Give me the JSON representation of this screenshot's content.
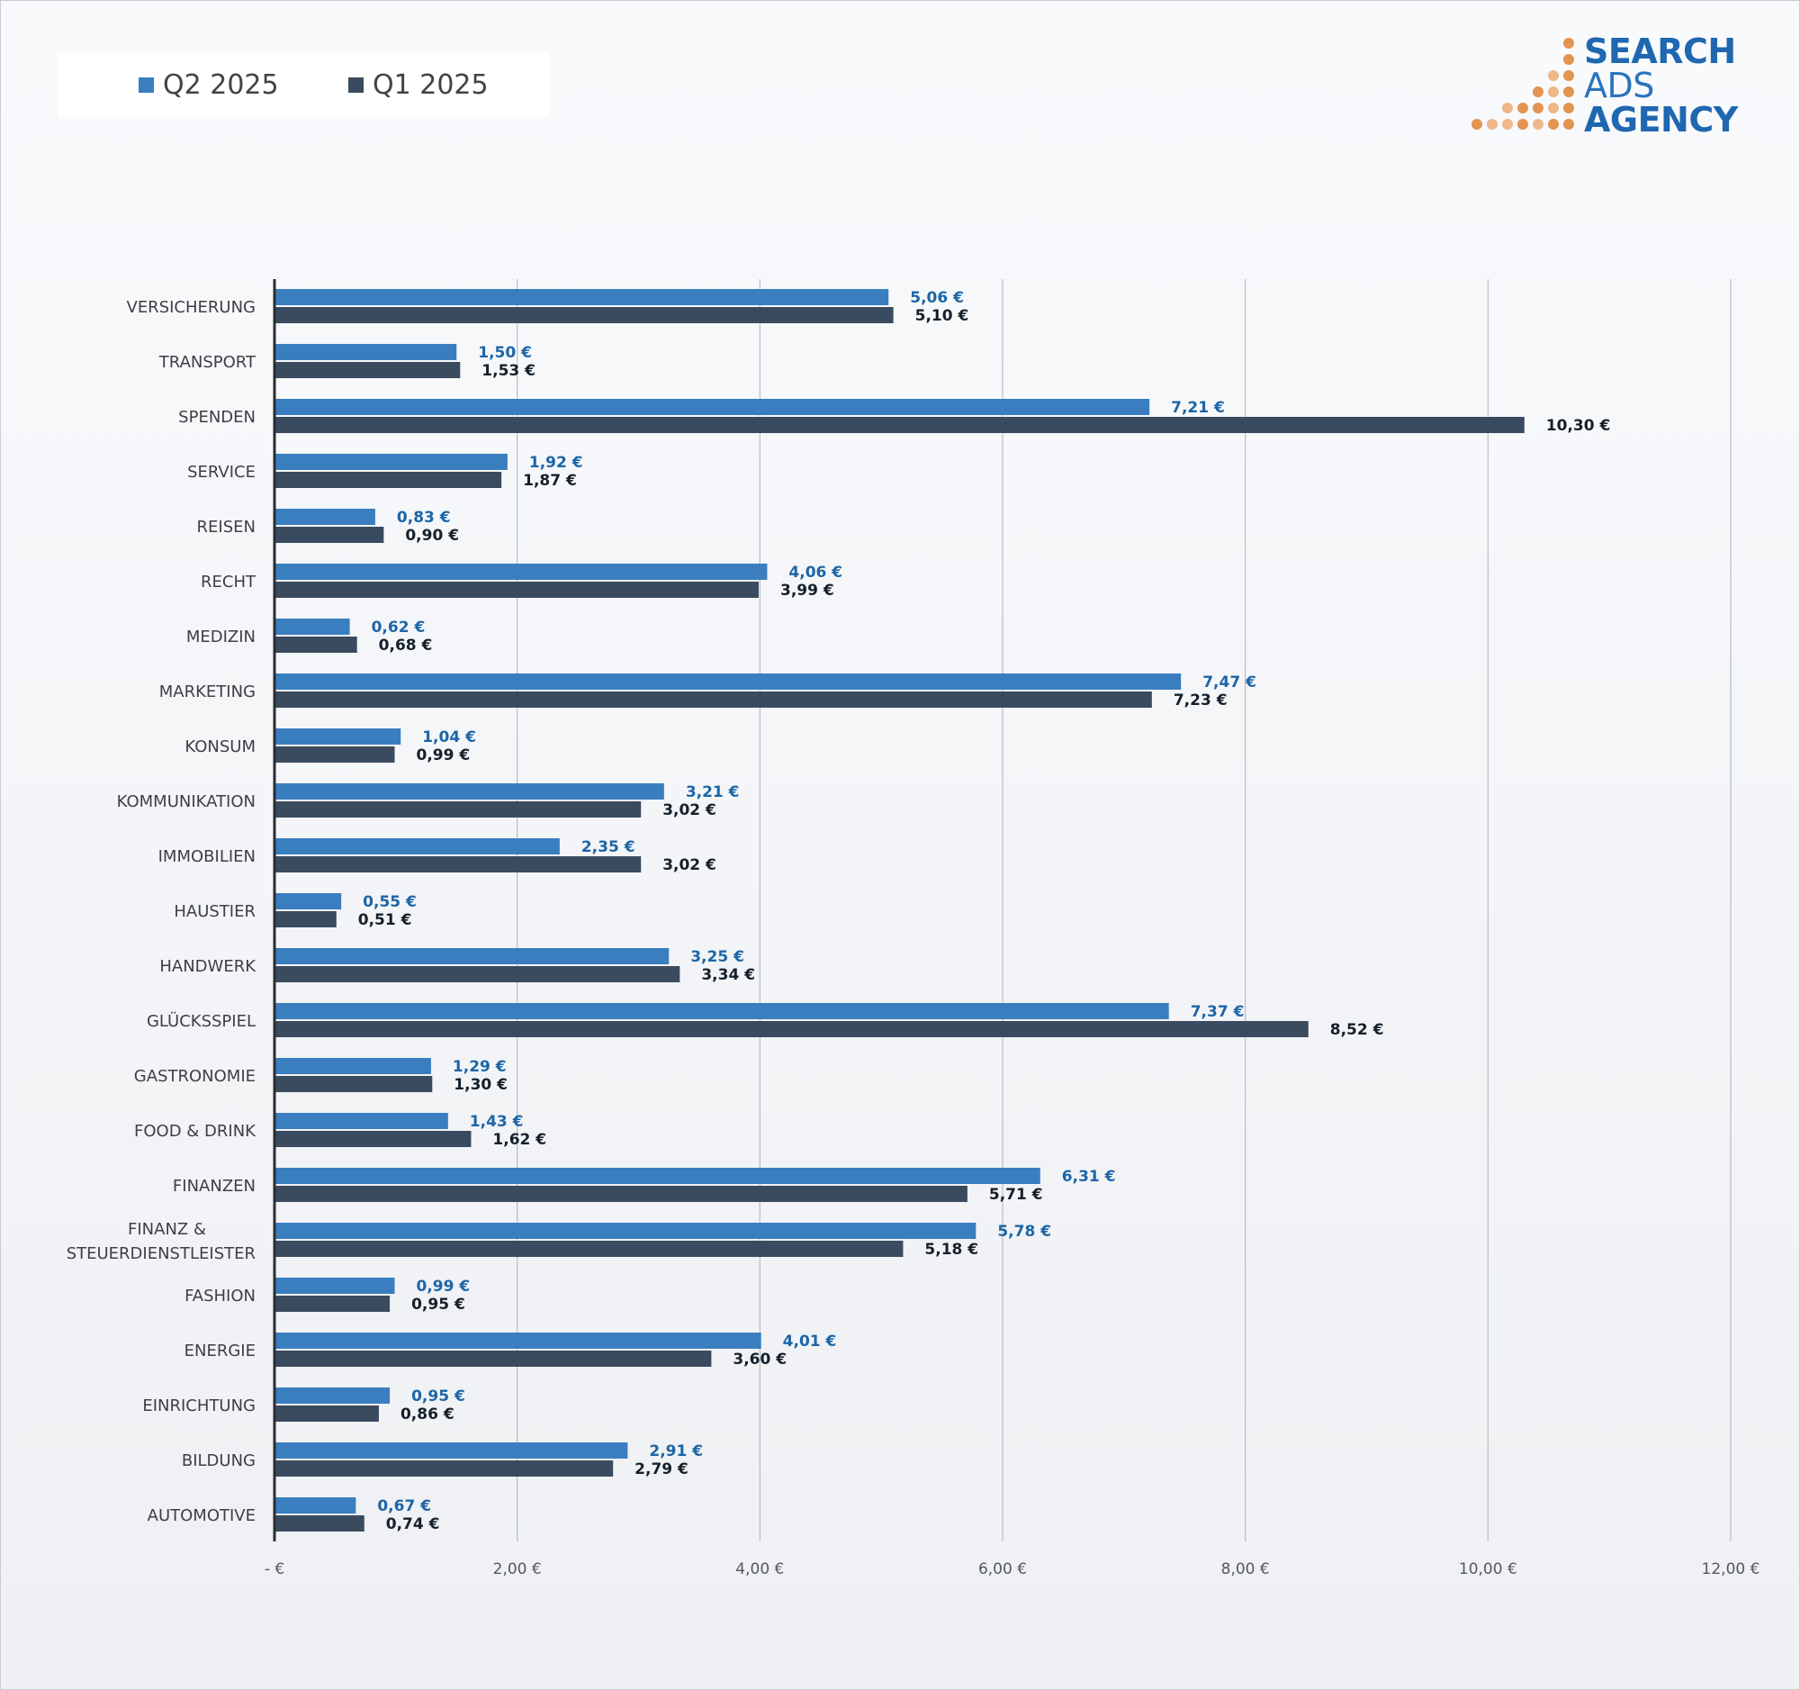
{
  "legend": {
    "q2_label": "Q2 2025",
    "q1_label": "Q1 2025"
  },
  "logo": {
    "line1": "SEARCH",
    "line2": "ADS",
    "line3": "AGENCY"
  },
  "colors": {
    "q2": "#3a7ebf",
    "q1": "#3b4b5f",
    "q2_label": "#1d65a6",
    "q1_label": "#15202b",
    "logo_blue": "#1f67b0",
    "logo_orange": "#e39450",
    "logo_orange_light": "#eeb88a"
  },
  "chart_data": {
    "type": "bar",
    "orientation": "horizontal",
    "categories": [
      "VERSICHERUNG",
      "TRANSPORT",
      "SPENDEN",
      "SERVICE",
      "REISEN",
      "RECHT",
      "MEDIZIN",
      "MARKETING",
      "KONSUM",
      "KOMMUNIKATION",
      "IMMOBILIEN",
      "HAUSTIER",
      "HANDWERK",
      "GLÜCKSSPIEL",
      "GASTRONOMIE",
      "FOOD & DRINK",
      "FINANZEN",
      "FINANZ & STEUERDIENSTLEISTER",
      "FASHION",
      "ENERGIE",
      "EINRICHTUNG",
      "BILDUNG",
      "AUTOMOTIVE"
    ],
    "series": [
      {
        "name": "Q2 2025",
        "values": [
          5.06,
          1.5,
          7.21,
          1.92,
          0.83,
          4.06,
          0.62,
          7.47,
          1.04,
          3.21,
          2.35,
          0.55,
          3.25,
          7.37,
          1.29,
          1.43,
          6.31,
          5.78,
          0.99,
          4.01,
          0.95,
          2.91,
          0.67
        ],
        "labels": [
          "5,06 €",
          "1,50 €",
          "7,21 €",
          "1,92 €",
          "0,83 €",
          "4,06 €",
          "0,62 €",
          "7,47 €",
          "1,04 €",
          "3,21 €",
          "2,35 €",
          "0,55 €",
          "3,25 €",
          "7,37 €",
          "1,29 €",
          "1,43 €",
          "6,31 €",
          "5,78 €",
          "0,99 €",
          "4,01 €",
          "0,95 €",
          "2,91 €",
          "0,67 €"
        ]
      },
      {
        "name": "Q1 2025",
        "values": [
          5.1,
          1.53,
          10.3,
          1.87,
          0.9,
          3.99,
          0.68,
          7.23,
          0.99,
          3.02,
          3.02,
          0.51,
          3.34,
          8.52,
          1.3,
          1.62,
          5.71,
          5.18,
          0.95,
          3.6,
          0.86,
          2.79,
          0.74
        ],
        "labels": [
          "5,10 €",
          "1,53 €",
          "10,30 €",
          "1,87 €",
          "0,90 €",
          "3,99 €",
          "0,68 €",
          "7,23 €",
          "0,99 €",
          "3,02 €",
          "3,02 €",
          "0,51 €",
          "3,34 €",
          "8,52 €",
          "1,30 €",
          "1,62 €",
          "5,71 €",
          "5,18 €",
          "0,95 €",
          "3,60 €",
          "0,86 €",
          "2,79 €",
          "0,74 €"
        ]
      }
    ],
    "xlim": [
      0,
      12
    ],
    "xticks": [
      0,
      2,
      4,
      6,
      8,
      10,
      12
    ],
    "xtick_labels": [
      "-  €",
      "2,00 €",
      "4,00 €",
      "6,00 €",
      "8,00 €",
      "10,00 €",
      "12,00 €"
    ],
    "grid": "vertical",
    "legend_position": "top-left",
    "title": "",
    "xlabel": "",
    "ylabel": ""
  }
}
